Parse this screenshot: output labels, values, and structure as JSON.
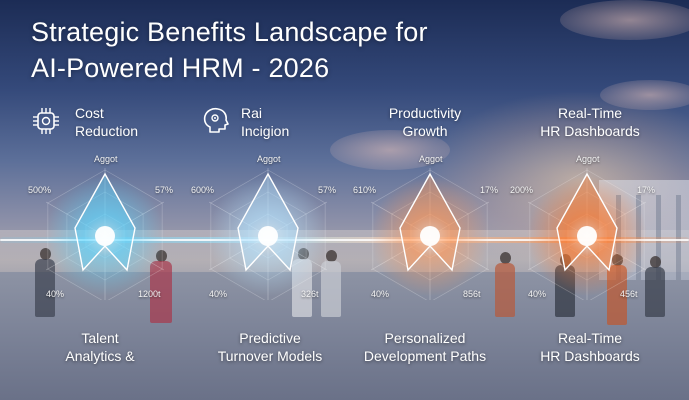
{
  "title": {
    "line1": "Strategic Benefits Landscape for",
    "line2": "AI-Powered HRM - 2026"
  },
  "top_labels": [
    {
      "line1": "Cost",
      "line2": "Reduction",
      "icon": "chip-icon"
    },
    {
      "line1": "Rai",
      "line2": "Incigion",
      "icon": "ai-head-icon"
    },
    {
      "line1": "Productivity",
      "line2": "Growth"
    },
    {
      "line1": "Real-Time",
      "line2": "HR Dashboards"
    }
  ],
  "charts": [
    {
      "top": "Aggot",
      "upper_left": "500%",
      "upper_right": "57%",
      "lower_left": "40%",
      "lower_right": "1200t",
      "color": "#5fd6ff"
    },
    {
      "top": "Aggot",
      "upper_left": "600%",
      "upper_right": "57%",
      "lower_left": "40%",
      "lower_right": "326t",
      "color": "#b8e4ff"
    },
    {
      "top": "Aggot",
      "upper_left": "610%",
      "upper_right": "17%",
      "lower_left": "40%",
      "lower_right": "856t",
      "color": "#ff9a5c"
    },
    {
      "top": "Aggot",
      "upper_left": "200%",
      "upper_right": "17%",
      "lower_left": "40%",
      "lower_right": "456t",
      "color": "#ff7a2e"
    }
  ],
  "bottom_labels": [
    {
      "line1": "Talent",
      "line2": "Analytics &"
    },
    {
      "line1": "Predictive",
      "line2": "Turnover Models"
    },
    {
      "line1": "Personalized",
      "line2": "Development Paths"
    },
    {
      "line1": "Real-Time",
      "line2": "HR Dashboards"
    }
  ]
}
